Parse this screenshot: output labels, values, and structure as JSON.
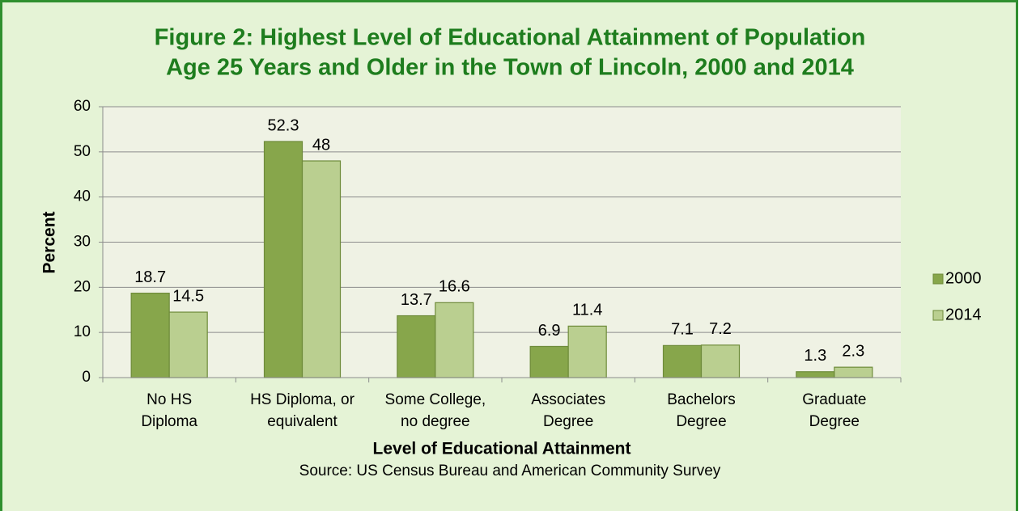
{
  "chart_data": {
    "type": "bar",
    "title": [
      "Figure 2: Highest Level of Educational Attainment of Population",
      "Age 25 Years and Older in the Town of Lincoln, 2000 and 2014"
    ],
    "categories": [
      [
        "No HS",
        "Diploma"
      ],
      [
        "HS Diploma, or",
        "equivalent"
      ],
      [
        "Some College,",
        "no degree"
      ],
      [
        "Associates",
        "Degree"
      ],
      [
        "Bachelors",
        "Degree"
      ],
      [
        "Graduate",
        "Degree"
      ]
    ],
    "series": [
      {
        "name": "2000",
        "color": "#87a64b",
        "values": [
          18.7,
          52.3,
          13.7,
          6.9,
          7.1,
          1.3
        ]
      },
      {
        "name": "2014",
        "color": "#bacf90",
        "values": [
          14.5,
          48,
          16.6,
          11.4,
          7.2,
          2.3
        ]
      }
    ],
    "ylim": [
      0,
      60
    ],
    "yticks": [
      0,
      10,
      20,
      30,
      40,
      50,
      60
    ],
    "y_label": "Percent",
    "x_label": "Level of Educational Attainment",
    "source": "Source: US Census Bureau and American Community Survey",
    "grid": true,
    "legend": "right"
  }
}
